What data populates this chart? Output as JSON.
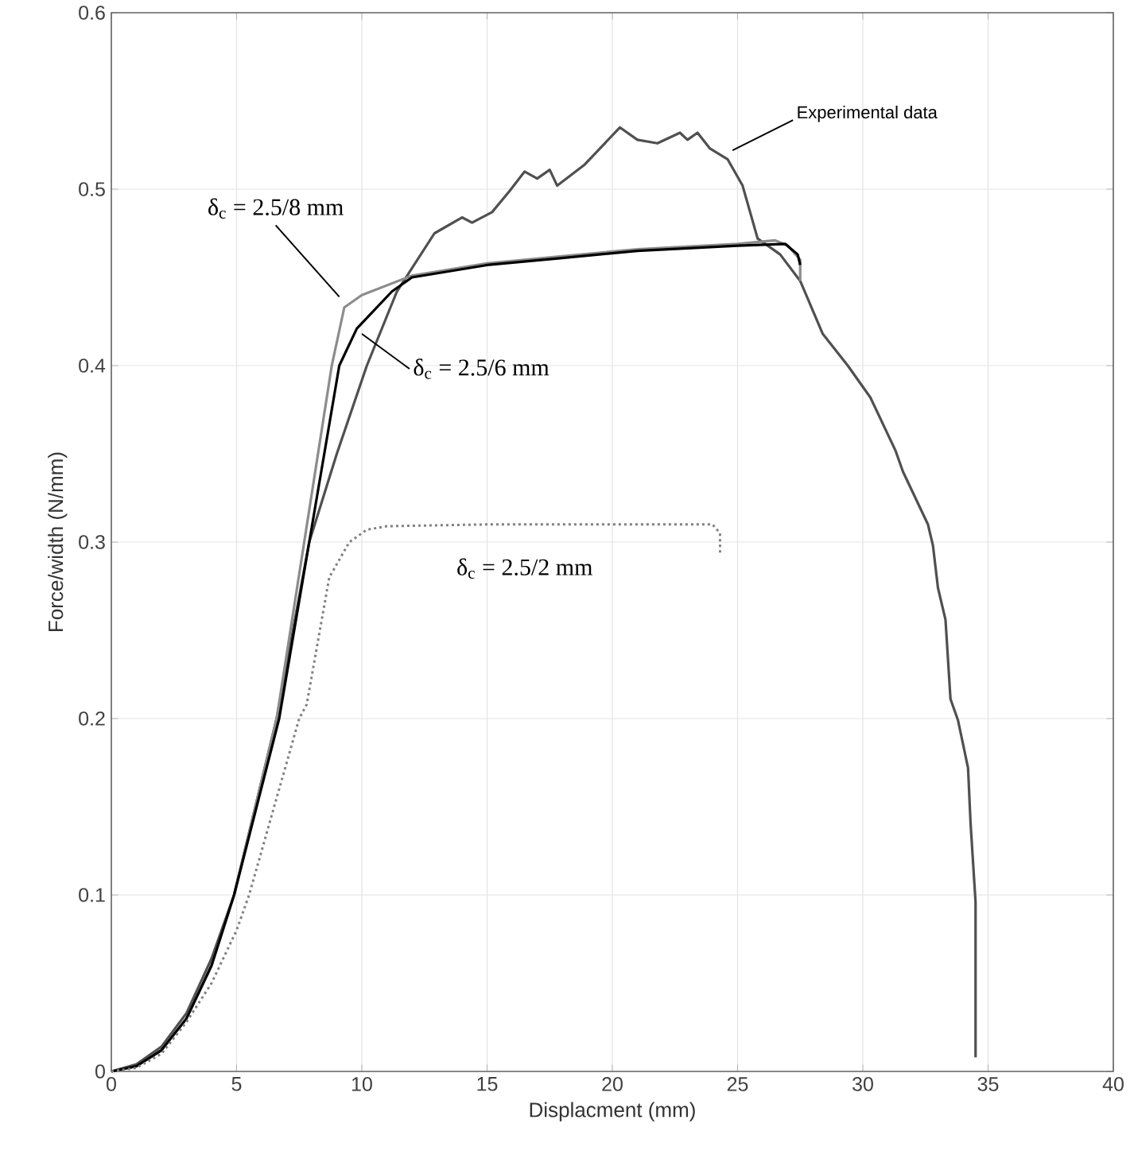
{
  "chart_data": {
    "type": "line",
    "xlabel": "Displacment (mm)",
    "ylabel": "Force/width (N/mm)",
    "xlim": [
      0,
      40
    ],
    "ylim": [
      0,
      0.6
    ],
    "xticks": [
      0,
      5,
      10,
      15,
      20,
      25,
      30,
      35,
      40
    ],
    "yticks": [
      0,
      0.1,
      0.2,
      0.3,
      0.4,
      0.5,
      0.6
    ],
    "grid": true,
    "series": [
      {
        "color": "#505050",
        "line_style": "solid",
        "x": [
          0,
          1,
          2,
          3,
          4,
          4.9,
          6.6,
          7.9,
          9,
          10.2,
          11.4,
          12.9,
          14.0,
          14.4,
          15.2,
          15.9,
          16.5,
          17.0,
          17.5,
          17.8,
          18.9,
          19.7,
          20.3,
          21.0,
          21.8,
          22.7,
          23.0,
          23.4,
          23.9,
          24.6,
          25.2,
          25.8,
          26.7,
          27.5,
          28.4,
          29.4,
          30.3,
          31.3,
          31.6,
          32.6,
          32.8,
          33.0,
          33.3,
          33.5,
          33.8,
          34.2,
          34.3,
          34.5,
          34.5
        ],
        "values": [
          0,
          0.004,
          0.014,
          0.033,
          0.064,
          0.1,
          0.2,
          0.3,
          0.35,
          0.4,
          0.442,
          0.475,
          0.484,
          0.481,
          0.487,
          0.499,
          0.51,
          0.506,
          0.511,
          0.502,
          0.514,
          0.526,
          0.535,
          0.528,
          0.526,
          0.532,
          0.528,
          0.532,
          0.523,
          0.517,
          0.502,
          0.472,
          0.463,
          0.448,
          0.418,
          0.4,
          0.382,
          0.352,
          0.34,
          0.31,
          0.298,
          0.274,
          0.256,
          0.211,
          0.199,
          0.172,
          0.141,
          0.096,
          0.008
        ]
      },
      {
        "color": "#8c8c8c",
        "line_style": "solid",
        "x": [
          0,
          1,
          2,
          3,
          4,
          4.9,
          6.6,
          7.7,
          8.8,
          9.3,
          10,
          12,
          15,
          18,
          21,
          25,
          26.5,
          27,
          27.5,
          27.5
        ],
        "values": [
          0,
          0.003,
          0.012,
          0.03,
          0.06,
          0.1,
          0.2,
          0.3,
          0.4,
          0.433,
          0.44,
          0.451,
          0.458,
          0.462,
          0.466,
          0.469,
          0.471,
          0.468,
          0.46,
          0.448
        ]
      },
      {
        "color": "#000000",
        "line_style": "solid",
        "x": [
          0,
          1,
          2,
          3,
          4,
          4.9,
          6.7,
          7.9,
          9.1,
          9.8,
          11.2,
          12,
          15,
          18,
          21,
          25,
          26.9,
          27.4,
          27.5
        ],
        "values": [
          0,
          0.003,
          0.012,
          0.03,
          0.06,
          0.1,
          0.2,
          0.3,
          0.4,
          0.421,
          0.442,
          0.45,
          0.457,
          0.461,
          0.465,
          0.468,
          0.469,
          0.463,
          0.457
        ]
      },
      {
        "color": "#808080",
        "line_style": "dotted",
        "x": [
          0,
          1,
          2,
          3,
          4,
          5,
          5.5,
          6.5,
          7.5,
          7.8,
          8.7,
          9.5,
          10.2,
          11,
          15,
          20,
          24,
          24.3,
          24.3
        ],
        "values": [
          0,
          0.002,
          0.01,
          0.028,
          0.05,
          0.08,
          0.1,
          0.15,
          0.2,
          0.208,
          0.28,
          0.3,
          0.307,
          0.309,
          0.31,
          0.31,
          0.31,
          0.305,
          0.293
        ]
      }
    ],
    "annotations": [
      "Experimental data",
      "δ$_{c}$ = 2.5/8 mm",
      {
        "text": "δ$_{c}$ = 2.5/6 mm",
        "x": 10.0,
        "y": 0.418
      },
      "δ$_{c}$ = 2.5/2 mm"
    ]
  }
}
